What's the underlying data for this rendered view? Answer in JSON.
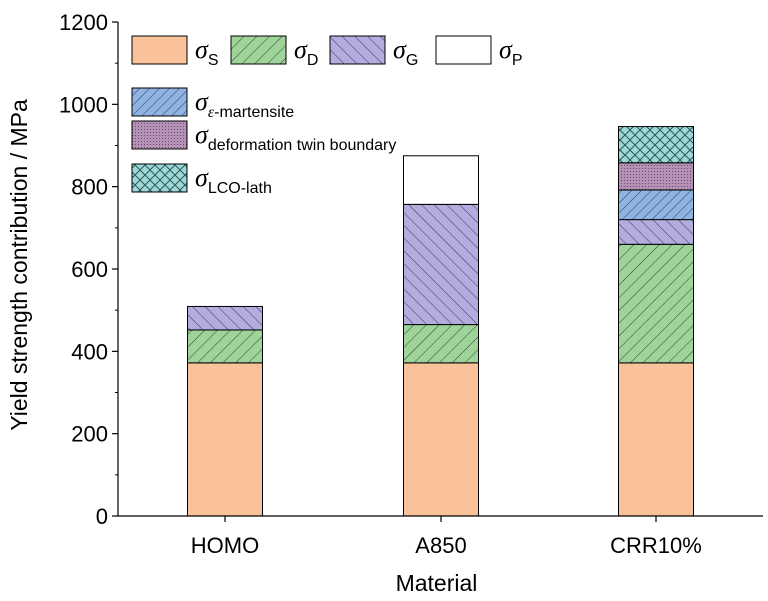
{
  "chart_data": {
    "type": "stacked-bar",
    "title": "",
    "xlabel": "Material",
    "ylabel": "Yield strength contribution / MPa",
    "ylim": [
      0,
      1200
    ],
    "yticks": [
      0,
      200,
      400,
      600,
      800,
      1000,
      1200
    ],
    "categories": [
      "HOMO",
      "A850",
      "CRR10%"
    ],
    "series": [
      {
        "name": "σ_S",
        "symbol": "σ",
        "subscript": "S",
        "color": "#f9c29a",
        "pattern": "solid",
        "values": [
          372,
          372,
          372
        ]
      },
      {
        "name": "σ_D",
        "symbol": "σ",
        "subscript": "D",
        "color": "#9fd39a",
        "pattern": "hatch-right",
        "values": [
          80,
          93,
          288
        ]
      },
      {
        "name": "σ_G",
        "symbol": "σ",
        "subscript": "G",
        "color": "#b3addf",
        "pattern": "hatch-left",
        "values": [
          57,
          292,
          60
        ]
      },
      {
        "name": "σ_P",
        "symbol": "σ",
        "subscript": "P",
        "color": "#ffffff",
        "pattern": "solid",
        "values": [
          0,
          118,
          0
        ]
      },
      {
        "name": "σ_ε-martensite",
        "symbol": "σ",
        "subscript_italic": "ε",
        "subscript": "-martensite",
        "color": "#8fb4e2",
        "pattern": "hatch-right-dense",
        "values": [
          0,
          0,
          72
        ]
      },
      {
        "name": "σ_deformation twin boundary",
        "symbol": "σ",
        "subscript": "deformation twin boundary",
        "color": "#b392b6",
        "pattern": "dots",
        "values": [
          0,
          0,
          66
        ]
      },
      {
        "name": "σ_LCO-lath",
        "symbol": "σ",
        "subscript": "LCO-lath",
        "color": "#9fd6d6",
        "pattern": "crosshatch",
        "values": [
          0,
          0,
          88
        ]
      }
    ],
    "legend_position": "top-left",
    "grid": false
  },
  "colors": {
    "axis": "#000000",
    "bar_edge": "#000000"
  }
}
